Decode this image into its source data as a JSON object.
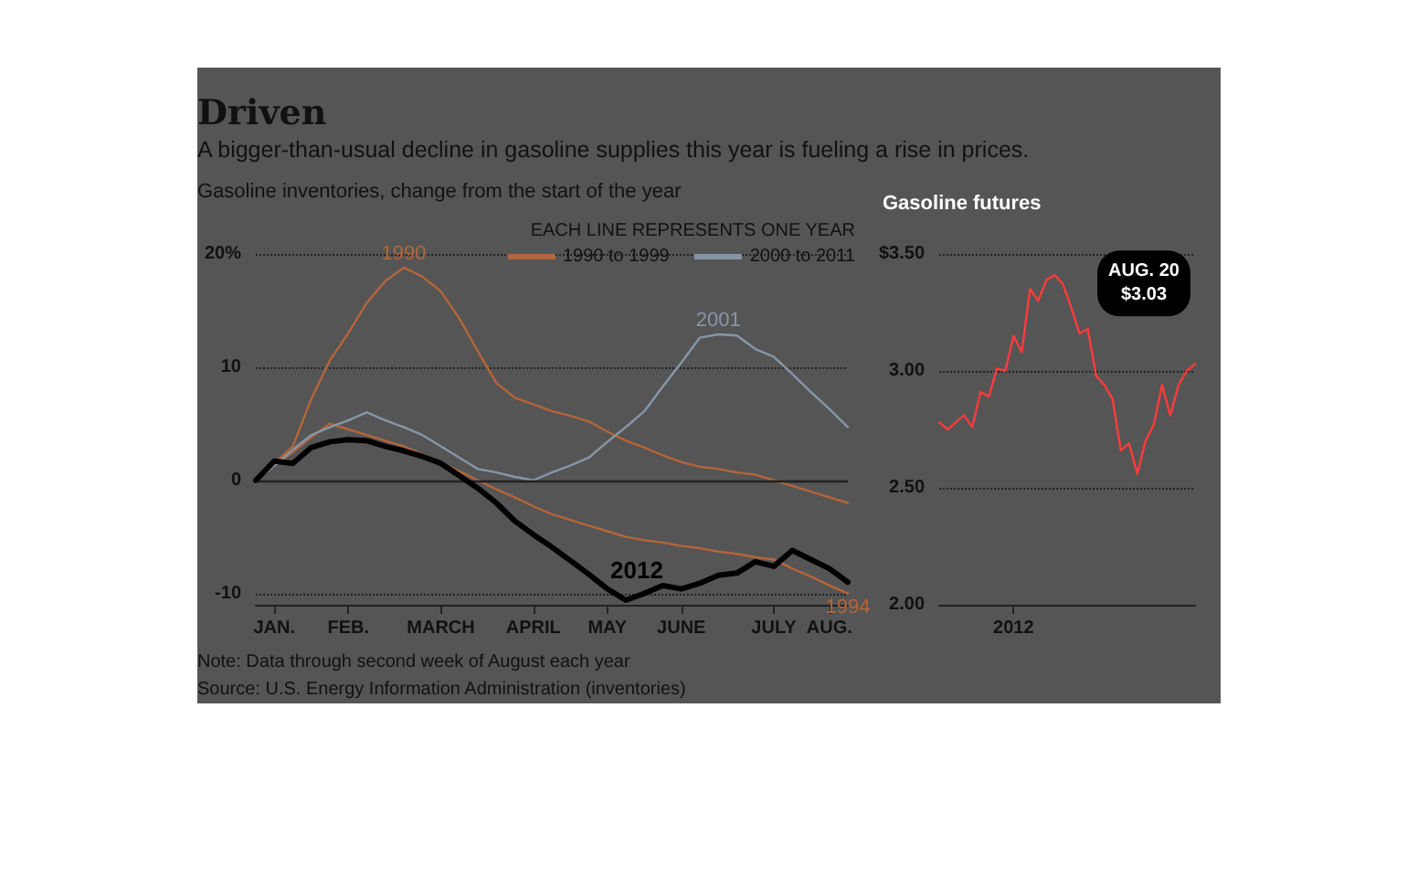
{
  "chart_data": [
    {
      "type": "line",
      "title": "Driven",
      "subtitle": "A bigger-than-usual decline in gasoline supplies this year is fueling a rise in prices.",
      "categories": [
        null,
        "JAN.",
        null,
        null,
        null,
        "FEB.",
        null,
        null,
        null,
        null,
        "MARCH",
        null,
        null,
        null,
        null,
        "APRIL",
        null,
        null,
        null,
        "MAY",
        null,
        null,
        null,
        "JUNE",
        null,
        null,
        null,
        null,
        "JULY",
        null,
        null,
        "AUG.",
        null
      ],
      "ylim": [
        -11,
        20
      ],
      "yticks": [
        {
          "value": 20,
          "label": "20%"
        },
        10,
        0,
        -10
      ],
      "grid": "y",
      "marker": "none",
      "line_style": "solid",
      "legend_title": "EACH LINE REPRESENTS ONE YEAR",
      "ref_lines": [
        {
          "axis": "y",
          "value": 0,
          "color": "#222222"
        }
      ],
      "series": [
        {
          "name": "1990",
          "color": "#b5653a",
          "values": [
            0,
            1.5,
            3,
            7.2,
            10.6,
            13,
            15.7,
            17.6,
            18.8,
            18,
            16.7,
            14.3,
            11.4,
            8.6,
            7.3,
            6.7,
            6.1,
            5.7,
            5.2,
            4.3,
            3.5,
            2.9,
            2.2,
            1.6,
            1.2,
            1,
            0.7,
            0.5,
            0,
            -0.5,
            -1,
            -1.5,
            -2
          ]
        },
        {
          "name": "1994",
          "color": "#b5653a",
          "values": [
            0,
            1.3,
            2.5,
            3.8,
            5,
            4.5,
            4,
            3.5,
            3,
            2.3,
            1.5,
            0.8,
            0,
            -0.8,
            -1.5,
            -2.3,
            -3,
            -3.5,
            -4,
            -4.5,
            -5,
            -5.3,
            -5.5,
            -5.8,
            -6,
            -6.3,
            -6.5,
            -6.8,
            -7,
            -7.8,
            -8.5,
            -9.3,
            -10
          ]
        },
        {
          "name": "2001",
          "color": "#8696a8",
          "values": [
            0,
            1.3,
            2.7,
            4,
            4.7,
            5.3,
            6,
            5.3,
            4.7,
            4,
            3,
            2,
            1,
            0.7,
            0.3,
            0,
            0.7,
            1.3,
            2,
            3.4,
            4.7,
            6.1,
            8.3,
            10.4,
            12.6,
            12.9,
            12.8,
            11.6,
            10.9,
            9.4,
            7.8,
            6.3,
            4.7
          ]
        },
        {
          "name": "2012",
          "color": "#000000",
          "values": [
            0,
            1.7,
            1.5,
            2.9,
            3.4,
            3.6,
            3.5,
            3,
            2.6,
            2.1,
            1.5,
            0.4,
            -0.7,
            -2,
            -3.6,
            -4.8,
            -5.9,
            -7.1,
            -8.3,
            -9.6,
            -10.6,
            -10,
            -9.3,
            -9.6,
            -9.1,
            -8.4,
            -8.2,
            -7.2,
            -7.6,
            -6.2,
            -7,
            -7.8,
            -9
          ]
        }
      ],
      "annotations": [
        "Gasoline inventories, change from the start of the year",
        "1990 to 1999",
        "2000 to 2011",
        "Note: Data through second week of August each year",
        "Source: U.S. Energy Information Administration (inventories)"
      ]
    },
    {
      "type": "line",
      "title": "Gasoline futures",
      "categories": [
        null,
        null,
        null,
        null,
        null,
        null,
        null,
        null,
        null,
        "2012",
        null,
        null,
        null,
        null,
        null,
        null,
        null,
        null,
        null,
        null,
        null,
        null,
        null,
        null,
        null,
        null,
        null,
        null,
        null,
        null,
        null,
        null
      ],
      "ylim": [
        2,
        3.5
      ],
      "yticks": [
        {
          "value": 3.5,
          "label": "$3.50"
        },
        {
          "value": 3,
          "label": "3.00"
        },
        {
          "value": 2.5,
          "label": "2.50"
        },
        {
          "value": 2,
          "label": "2.00"
        }
      ],
      "grid": "y",
      "marker": "none",
      "line_style": "solid",
      "series": [
        {
          "color": "#ff3b3b",
          "values": [
            2.78,
            2.75,
            2.78,
            2.81,
            2.76,
            2.91,
            2.89,
            3.01,
            3.0,
            3.15,
            3.08,
            3.35,
            3.3,
            3.39,
            3.41,
            3.37,
            3.27,
            3.16,
            3.18,
            2.98,
            2.94,
            2.88,
            2.66,
            2.69,
            2.56,
            2.7,
            2.77,
            2.94,
            2.81,
            2.94,
            3.0,
            3.03
          ]
        }
      ],
      "annotations": [
        "AUG. 20\n$3.03"
      ]
    }
  ]
}
